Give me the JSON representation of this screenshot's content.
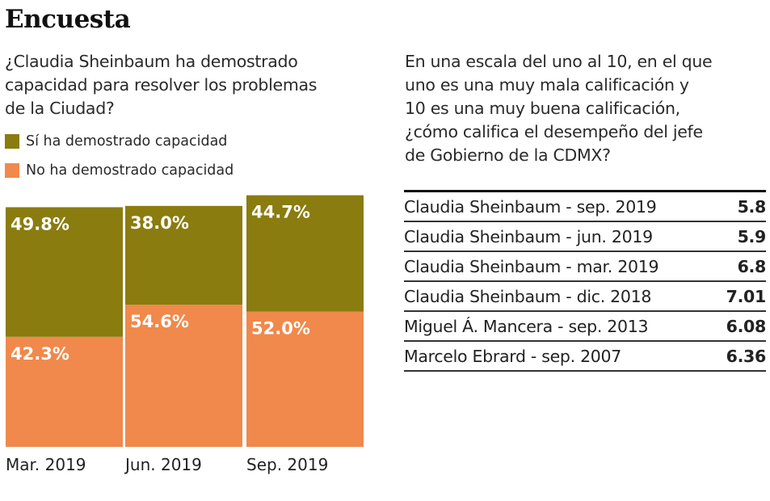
{
  "title": "Encuesta",
  "chart_data": {
    "type": "bar",
    "stacked": true,
    "title": "¿Claudia Sheinbaum ha demostrado capacidad para resolver los problemas de la Ciudad?",
    "categories": [
      "Mar. 2019",
      "Jun. 2019",
      "Sep. 2019"
    ],
    "series": [
      {
        "name": "No ha demostrado capacidad",
        "values": [
          42.3,
          54.6,
          52.0
        ],
        "labels": [
          "42.3%",
          "54.6%",
          "52.0%"
        ],
        "color": "#f0894b"
      },
      {
        "name": "Sí ha demostrado capacidad",
        "values": [
          49.8,
          38.0,
          44.7
        ],
        "labels": [
          "49.8%",
          "38.0%",
          "44.7%"
        ],
        "color": "#8a7c0f"
      }
    ],
    "legend": "top-left",
    "grid": false,
    "unit": "%"
  },
  "question_lines": [
    "¿Claudia Sheinbaum ha demostrado",
    "capacidad para resolver los problemas",
    "de la Ciudad?"
  ],
  "rating": {
    "question_lines": [
      "En una escala del uno al 10, en el que",
      "uno es una muy mala calificación y",
      "10 es una muy buena calificación,",
      "¿cómo califica el desempeño del jefe",
      "de Gobierno de la CDMX?"
    ],
    "rows": [
      {
        "label": "Claudia Sheinbaum - sep. 2019",
        "value": "5.8"
      },
      {
        "label": "Claudia Sheinbaum - jun. 2019",
        "value": "5.9"
      },
      {
        "label": "Claudia Sheinbaum - mar. 2019",
        "value": "6.8"
      },
      {
        "label": "Claudia Sheinbaum - dic. 2018",
        "value": "7.01"
      },
      {
        "label": "Miguel Á. Mancera - sep. 2013",
        "value": "6.08"
      },
      {
        "label": "Marcelo Ebrard - sep. 2007",
        "value": "6.36"
      }
    ]
  }
}
